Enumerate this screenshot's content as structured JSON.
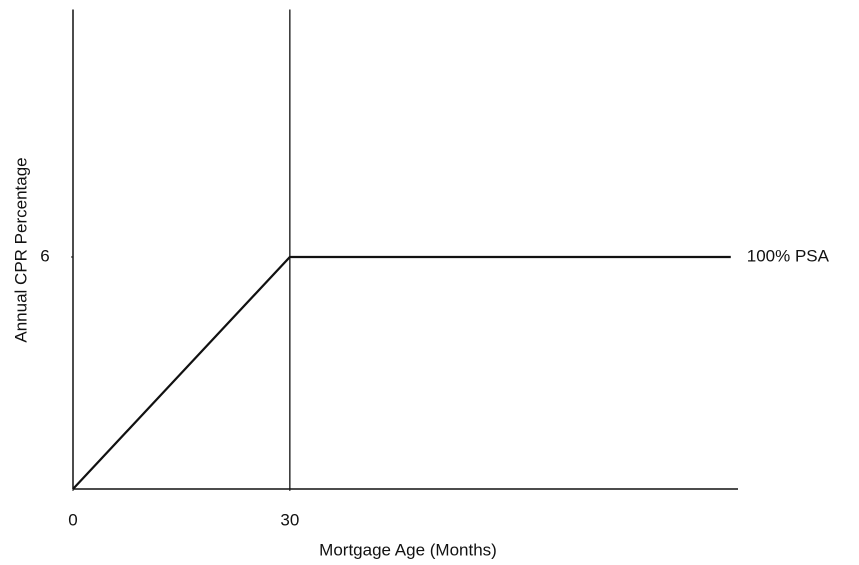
{
  "chart_data": {
    "type": "line",
    "xlabel": "Mortgage Age (Months)",
    "ylabel": "Annual CPR Percentage",
    "x": [
      0,
      30,
      91
    ],
    "series": [
      {
        "name": "100% PSA",
        "color": "#111111",
        "values": [
          0,
          6,
          6
        ]
      }
    ],
    "xlim": [
      0,
      92
    ],
    "ylim": [
      0,
      12.4
    ],
    "xticks": [
      0,
      30
    ],
    "yticks": [
      6
    ],
    "vline": 30,
    "grid": false
  }
}
